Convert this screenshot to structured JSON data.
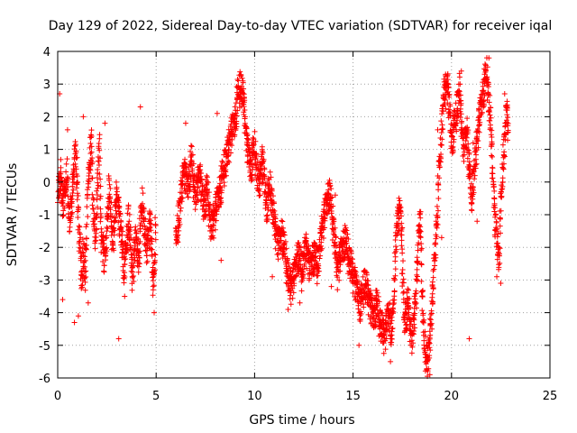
{
  "chart_data": {
    "type": "scatter",
    "title": "Day 129 of 2022, Sidereal Day-to-day VTEC variation (SDTVAR) for receiver iqal",
    "xlabel": "GPS time / hours",
    "ylabel": "SDTVAR / TECUs",
    "xlim": [
      0,
      25
    ],
    "ylim": [
      -6,
      4
    ],
    "xticks": [
      0,
      5,
      10,
      15,
      20,
      25
    ],
    "yticks": [
      -6,
      -5,
      -4,
      -3,
      -2,
      -1,
      0,
      1,
      2,
      3,
      4
    ],
    "grid": true,
    "marker": "+",
    "color": "#ff0000",
    "series": [
      {
        "name": "SDTVAR",
        "trace_points": [
          [
            0.0,
            -0.5
          ],
          [
            0.15,
            0.3
          ],
          [
            0.3,
            -0.8
          ],
          [
            0.45,
            0.4
          ],
          [
            0.6,
            -1.2
          ],
          [
            0.75,
            -0.3
          ],
          [
            0.9,
            0.8
          ],
          [
            1.0,
            0.2
          ],
          [
            1.1,
            -1.8
          ],
          [
            1.2,
            -3.0
          ],
          [
            1.3,
            -2.2
          ],
          [
            1.4,
            -2.8
          ],
          [
            1.5,
            -1.0
          ],
          [
            1.6,
            0.6
          ],
          [
            1.7,
            1.3
          ],
          [
            1.8,
            -0.6
          ],
          [
            1.9,
            -2.0
          ],
          [
            2.0,
            -0.5
          ],
          [
            2.1,
            1.2
          ],
          [
            2.2,
            -1.6
          ],
          [
            2.4,
            -2.6
          ],
          [
            2.6,
            -0.2
          ],
          [
            2.8,
            -1.9
          ],
          [
            3.0,
            -0.4
          ],
          [
            3.2,
            -1.6
          ],
          [
            3.4,
            -2.7
          ],
          [
            3.6,
            -1.1
          ],
          [
            3.8,
            -3.0
          ],
          [
            3.95,
            -1.8
          ],
          [
            4.1,
            -2.4
          ],
          [
            4.3,
            -0.6
          ],
          [
            4.5,
            -2.2
          ],
          [
            4.7,
            -1.3
          ],
          [
            4.85,
            -3.3
          ],
          [
            5.0,
            -1.2
          ],
          [
            6.0,
            -2.0
          ],
          [
            6.2,
            -0.8
          ],
          [
            6.4,
            0.3
          ],
          [
            6.6,
            -0.2
          ],
          [
            6.8,
            0.6
          ],
          [
            7.0,
            -0.5
          ],
          [
            7.2,
            0.2
          ],
          [
            7.4,
            -0.8
          ],
          [
            7.6,
            -0.3
          ],
          [
            7.8,
            -1.5
          ],
          [
            8.0,
            -1.0
          ],
          [
            8.2,
            -0.4
          ],
          [
            8.4,
            0.2
          ],
          [
            8.6,
            0.8
          ],
          [
            8.8,
            1.4
          ],
          [
            9.0,
            1.8
          ],
          [
            9.15,
            2.6
          ],
          [
            9.3,
            2.9
          ],
          [
            9.45,
            2.4
          ],
          [
            9.6,
            1.1
          ],
          [
            9.8,
            0.4
          ],
          [
            10.0,
            1.0
          ],
          [
            10.2,
            -0.2
          ],
          [
            10.4,
            0.6
          ],
          [
            10.6,
            -0.8
          ],
          [
            10.8,
            -0.2
          ],
          [
            11.0,
            -1.3
          ],
          [
            11.2,
            -2.0
          ],
          [
            11.4,
            -1.6
          ],
          [
            11.6,
            -2.5
          ],
          [
            11.8,
            -3.3
          ],
          [
            12.0,
            -3.0
          ],
          [
            12.2,
            -2.2
          ],
          [
            12.4,
            -2.8
          ],
          [
            12.6,
            -2.0
          ],
          [
            12.8,
            -2.7
          ],
          [
            13.0,
            -2.3
          ],
          [
            13.2,
            -2.6
          ],
          [
            13.4,
            -1.6
          ],
          [
            13.6,
            -0.9
          ],
          [
            13.8,
            -0.3
          ],
          [
            14.0,
            -1.4
          ],
          [
            14.2,
            -2.8
          ],
          [
            14.4,
            -2.2
          ],
          [
            14.6,
            -1.8
          ],
          [
            14.8,
            -2.4
          ],
          [
            15.0,
            -2.9
          ],
          [
            15.2,
            -3.4
          ],
          [
            15.4,
            -3.8
          ],
          [
            15.6,
            -3.1
          ],
          [
            15.8,
            -3.6
          ],
          [
            16.0,
            -4.2
          ],
          [
            16.2,
            -3.8
          ],
          [
            16.4,
            -4.4
          ],
          [
            16.6,
            -4.8
          ],
          [
            16.8,
            -4.1
          ],
          [
            17.0,
            -4.6
          ],
          [
            17.2,
            -1.5
          ],
          [
            17.4,
            -0.8
          ],
          [
            17.6,
            -4.3
          ],
          [
            17.8,
            -3.8
          ],
          [
            18.0,
            -4.9
          ],
          [
            18.2,
            -3.5
          ],
          [
            18.4,
            -1.0
          ],
          [
            18.6,
            -5.0
          ],
          [
            18.8,
            -5.6
          ],
          [
            19.0,
            -4.0
          ],
          [
            19.2,
            -1.8
          ],
          [
            19.4,
            0.5
          ],
          [
            19.6,
            2.6
          ],
          [
            19.8,
            2.9
          ],
          [
            20.0,
            1.2
          ],
          [
            20.2,
            1.8
          ],
          [
            20.4,
            2.8
          ],
          [
            20.6,
            0.9
          ],
          [
            20.8,
            1.5
          ],
          [
            21.0,
            -0.6
          ],
          [
            21.2,
            0.6
          ],
          [
            21.4,
            1.8
          ],
          [
            21.6,
            2.7
          ],
          [
            21.8,
            3.3
          ],
          [
            22.0,
            1.5
          ],
          [
            22.2,
            -1.2
          ],
          [
            22.4,
            -2.4
          ],
          [
            22.6,
            0.4
          ],
          [
            22.8,
            2.2
          ],
          [
            22.9,
            1.4
          ]
        ],
        "outliers": [
          [
            0.1,
            2.7
          ],
          [
            0.25,
            -3.6
          ],
          [
            0.5,
            1.6
          ],
          [
            0.85,
            -4.3
          ],
          [
            1.05,
            -4.1
          ],
          [
            1.3,
            2.0
          ],
          [
            1.55,
            -3.7
          ],
          [
            2.4,
            1.8
          ],
          [
            3.1,
            -4.8
          ],
          [
            3.4,
            -3.5
          ],
          [
            4.2,
            2.3
          ],
          [
            4.9,
            -4.0
          ],
          [
            6.5,
            1.8
          ],
          [
            8.1,
            2.1
          ],
          [
            8.3,
            -2.4
          ],
          [
            10.9,
            -2.9
          ],
          [
            11.7,
            -3.9
          ],
          [
            12.3,
            -3.7
          ],
          [
            15.3,
            -5.0
          ],
          [
            16.9,
            -5.5
          ],
          [
            18.9,
            -5.9
          ],
          [
            19.3,
            1.6
          ],
          [
            19.5,
            -1.7
          ],
          [
            20.5,
            3.4
          ],
          [
            20.9,
            -4.8
          ],
          [
            21.1,
            1.2
          ],
          [
            21.3,
            -1.2
          ],
          [
            21.9,
            3.8
          ],
          [
            22.3,
            -2.9
          ],
          [
            22.5,
            -3.1
          ],
          [
            22.7,
            2.7
          ],
          [
            19.7,
            3.3
          ],
          [
            17.5,
            -1.4
          ],
          [
            14.1,
            -0.4
          ],
          [
            13.9,
            -3.2
          ]
        ]
      }
    ]
  }
}
